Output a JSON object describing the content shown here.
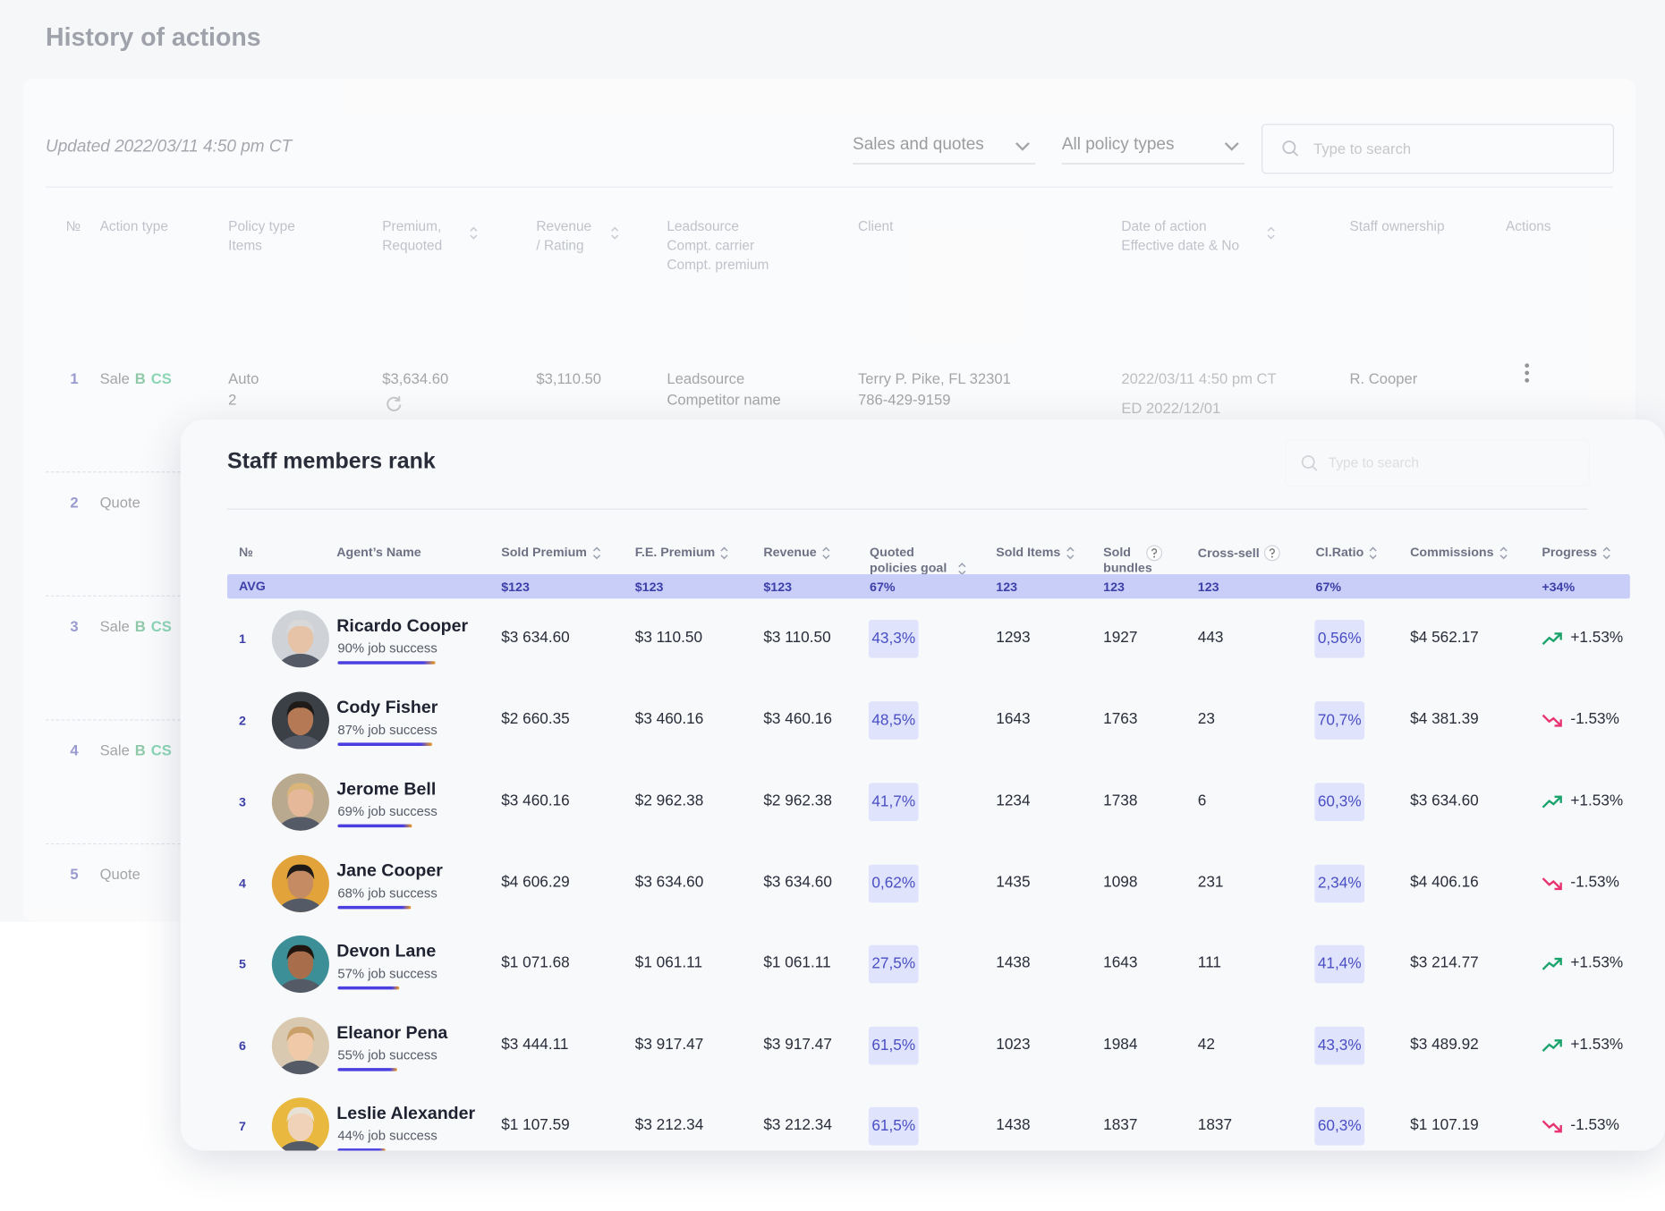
{
  "history": {
    "title": "History of actions",
    "updated": "Updated 2022/03/11 4:50 pm CT",
    "filters": [
      "Sales and quotes",
      "All policy types"
    ],
    "search_placeholder": "Type to search",
    "columns": [
      {
        "lines": [
          "№"
        ],
        "sortable": false
      },
      {
        "lines": [
          "Action type"
        ],
        "sortable": false
      },
      {
        "lines": [
          "Policy type",
          "Items"
        ],
        "sortable": false
      },
      {
        "lines": [
          "Premium,",
          "Requoted"
        ],
        "sortable": true
      },
      {
        "lines": [
          "Revenue",
          "/ Rating"
        ],
        "sortable": true
      },
      {
        "lines": [
          "Leadsource",
          "Compt. carrier",
          "Compt. premium"
        ],
        "sortable": false
      },
      {
        "lines": [
          "Client"
        ],
        "sortable": false
      },
      {
        "lines": [
          "Date of action",
          "Effective date & No"
        ],
        "sortable": true
      },
      {
        "lines": [
          "Staff ownership"
        ],
        "sortable": false
      },
      {
        "lines": [
          "Actions"
        ],
        "sortable": false
      }
    ],
    "rows": [
      {
        "no": 1,
        "action": {
          "label": "Sale",
          "badges": [
            "B",
            "CS"
          ]
        },
        "policy": [
          "Auto",
          "2"
        ],
        "premium": "$3,634.60",
        "revenue": "$3,110.50",
        "leadsource": [
          "Leadsource",
          "Competitor name"
        ],
        "client": [
          "Terry P. Pike, FL 32301",
          "786-429-9159"
        ],
        "date": [
          "2022/03/11 4:50 pm CT",
          "ED 2022/12/01"
        ],
        "staff": "R. Cooper"
      },
      {
        "no": 2,
        "action": {
          "label": "Quote"
        }
      },
      {
        "no": 3,
        "action": {
          "label": "Sale",
          "badges": [
            "B",
            "CS"
          ]
        }
      },
      {
        "no": 4,
        "action": {
          "label": "Sale",
          "badges": [
            "B",
            "CS"
          ]
        }
      },
      {
        "no": 5,
        "action": {
          "label": "Quote"
        }
      }
    ]
  },
  "staff_rank": {
    "title": "Staff members rank",
    "search_placeholder": "Type to search",
    "columns": [
      {
        "label": "№"
      },
      {
        "label": "Agent’s Name"
      },
      {
        "label": "Sold Premium",
        "sortable": true
      },
      {
        "label": "F.E. Premium",
        "sortable": true
      },
      {
        "label": "Revenue",
        "sortable": true
      },
      {
        "label": "Quoted policies goal",
        "sortable": true
      },
      {
        "label": "Sold Items",
        "sortable": true
      },
      {
        "label": "Sold bundles",
        "help": true
      },
      {
        "label": "Cross-sell",
        "help": true
      },
      {
        "label": "Cl.Ratio",
        "sortable": true
      },
      {
        "label": "Commissions",
        "sortable": true
      },
      {
        "label": "Progress",
        "sortable": true
      }
    ],
    "avg": {
      "label": "AVG",
      "values": [
        "$123",
        "$123",
        "$123",
        "67%",
        "123",
        "123",
        "123",
        "67%",
        null,
        "+34%"
      ]
    },
    "rows": [
      {
        "no": 1,
        "name": "Ricardo Cooper",
        "success": 90,
        "success_label": "90% job success",
        "cells": [
          "$3 634.60",
          "$3 110.50",
          "$3 110.50",
          "43,3%",
          "1293",
          "1927",
          "443",
          "0,56%",
          "$4 562.17",
          "+1.53%"
        ],
        "trend": "up"
      },
      {
        "no": 2,
        "name": "Cody Fisher",
        "success": 87,
        "success_label": "87% job success",
        "cells": [
          "$2 660.35",
          "$3 460.16",
          "$3 460.16",
          "48,5%",
          "1643",
          "1763",
          "23",
          "70,7%",
          "$4 381.39",
          "-1.53%"
        ],
        "trend": "down"
      },
      {
        "no": 3,
        "name": "Jerome Bell",
        "success": 69,
        "success_label": "69% job success",
        "cells": [
          "$3 460.16",
          "$2 962.38",
          "$2 962.38",
          "41,7%",
          "1234",
          "1738",
          "6",
          "60,3%",
          "$3 634.60",
          "+1.53%"
        ],
        "trend": "up"
      },
      {
        "no": 4,
        "name": "Jane Cooper",
        "success": 68,
        "success_label": "68% job success",
        "cells": [
          "$4 606.29",
          "$3 634.60",
          "$3 634.60",
          "0,62%",
          "1435",
          "1098",
          "231",
          "2,34%",
          "$4 406.16",
          "-1.53%"
        ],
        "trend": "down"
      },
      {
        "no": 5,
        "name": "Devon Lane",
        "success": 57,
        "success_label": "57% job success",
        "cells": [
          "$1 071.68",
          "$1 061.11",
          "$1 061.11",
          "27,5%",
          "1438",
          "1643",
          "111",
          "41,4%",
          "$3 214.77",
          "+1.53%"
        ],
        "trend": "up"
      },
      {
        "no": 6,
        "name": "Eleanor Pena",
        "success": 55,
        "success_label": "55% job success",
        "cells": [
          "$3 444.11",
          "$3 917.47",
          "$3 917.47",
          "61,5%",
          "1023",
          "1984",
          "42",
          "43,3%",
          "$3 489.92",
          "+1.53%"
        ],
        "trend": "up"
      },
      {
        "no": 7,
        "name": "Leslie Alexander",
        "success": 44,
        "success_label": "44% job success",
        "cells": [
          "$1 107.59",
          "$3 212.34",
          "$3 212.34",
          "61,5%",
          "1438",
          "1837",
          "1837",
          "60,3%",
          "$1 107.19",
          "-1.53%"
        ],
        "trend": "down"
      }
    ]
  }
}
